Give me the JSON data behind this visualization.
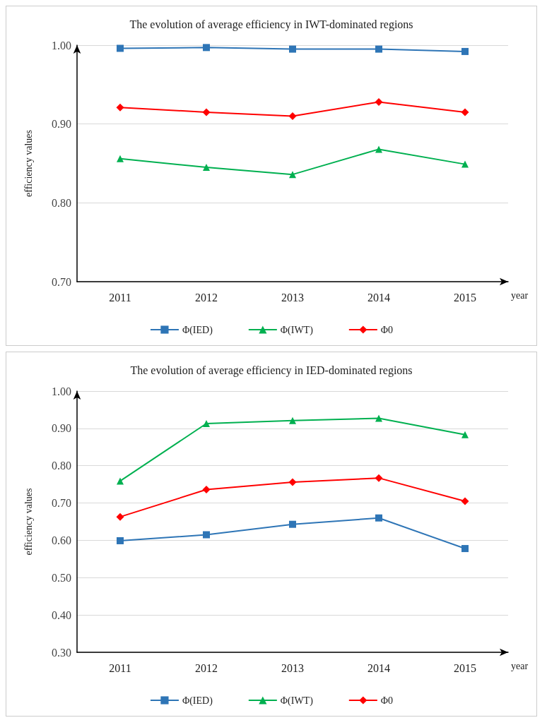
{
  "chart_data": [
    {
      "type": "line",
      "title": "The evolution of average efficiency in IWT-dominated regions",
      "xlabel": "year",
      "ylabel": "efficiency values",
      "categories": [
        "2011",
        "2012",
        "2013",
        "2014",
        "2015"
      ],
      "series": [
        {
          "name": "Φ(IED)",
          "color": "#2e75b6",
          "marker": "square",
          "values": [
            0.996,
            0.997,
            0.995,
            0.995,
            0.992
          ]
        },
        {
          "name": "Φ(IWT)",
          "color": "#00b050",
          "marker": "triangle",
          "values": [
            0.856,
            0.845,
            0.836,
            0.868,
            0.849
          ]
        },
        {
          "name": "Φ0",
          "color": "#ff0000",
          "marker": "diamond",
          "values": [
            0.921,
            0.915,
            0.91,
            0.928,
            0.915
          ]
        }
      ],
      "ylim": [
        0.7,
        1.0
      ],
      "yticks": [
        {
          "value": 0.7,
          "label": "0.70"
        },
        {
          "value": 0.8,
          "label": "0.80"
        },
        {
          "value": 0.9,
          "label": "0.90"
        },
        {
          "value": 1.0,
          "label": "1.00"
        }
      ],
      "grid": "y",
      "legend": "bottom"
    },
    {
      "type": "line",
      "title": "The evolution of average efficiency in IED-dominated regions",
      "xlabel": "year",
      "ylabel": "efficiency values",
      "categories": [
        "2011",
        "2012",
        "2013",
        "2014",
        "2015"
      ],
      "series": [
        {
          "name": "Φ(IED)",
          "color": "#2e75b6",
          "marker": "square",
          "values": [
            0.599,
            0.615,
            0.643,
            0.66,
            0.578
          ]
        },
        {
          "name": "Φ(IWT)",
          "color": "#00b050",
          "marker": "triangle",
          "values": [
            0.759,
            0.913,
            0.921,
            0.927,
            0.883
          ]
        },
        {
          "name": "Φ0",
          "color": "#ff0000",
          "marker": "diamond",
          "values": [
            0.663,
            0.736,
            0.756,
            0.767,
            0.705
          ]
        }
      ],
      "ylim": [
        0.3,
        1.0
      ],
      "yticks": [
        {
          "value": 0.3,
          "label": "0.30"
        },
        {
          "value": 0.4,
          "label": "0.40"
        },
        {
          "value": 0.5,
          "label": "0.50"
        },
        {
          "value": 0.6,
          "label": "0.60"
        },
        {
          "value": 0.7,
          "label": "0.70"
        },
        {
          "value": 0.8,
          "label": "0.80"
        },
        {
          "value": 0.9,
          "label": "0.90"
        },
        {
          "value": 1.0,
          "label": "1.00"
        }
      ],
      "grid": "y",
      "legend": "bottom"
    }
  ]
}
